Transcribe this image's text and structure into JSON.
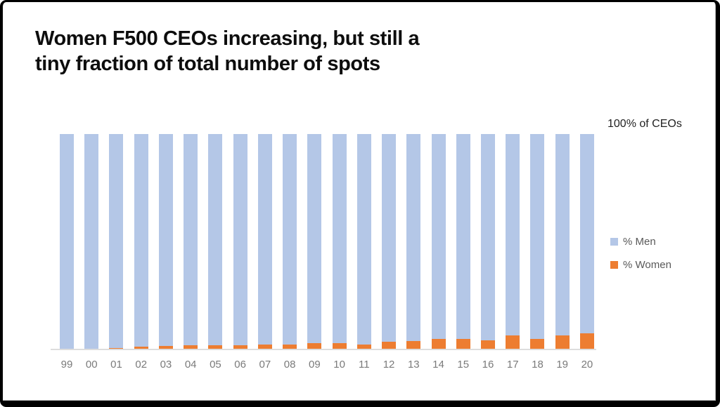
{
  "title": {
    "text": "Women F500 CEOs increasing, but still a tiny fraction of total number of spots",
    "line1": "Women F500 CEOs increasing, but still a",
    "line2": "tiny fraction of total number of spots"
  },
  "axis_note": "100% of CEOs",
  "legend": [
    {
      "label": "% Men",
      "color": "#b4c7e7"
    },
    {
      "label": "% Women",
      "color": "#ed7d31"
    }
  ],
  "colors": {
    "men_bar": "#b4c7e7",
    "women_bar": "#ed7d31",
    "axis_line": "#dddddd",
    "tick_label": "#7a7a7a",
    "frame_border": "#000000"
  },
  "chart_data": {
    "type": "bar",
    "stacked": true,
    "title": "Women F500 CEOs increasing, but still a tiny fraction of total number of spots",
    "xlabel": "",
    "ylabel": "",
    "annotation": "100% of CEOs",
    "ylim": [
      0,
      100
    ],
    "grid": false,
    "legend_position": "right",
    "categories": [
      "99",
      "00",
      "01",
      "02",
      "03",
      "04",
      "05",
      "06",
      "07",
      "08",
      "09",
      "10",
      "11",
      "12",
      "13",
      "14",
      "15",
      "16",
      "17",
      "18",
      "19",
      "20"
    ],
    "series": [
      {
        "name": "% Women",
        "color": "#ed7d31",
        "values": [
          0.4,
          0.4,
          0.8,
          1.2,
          1.6,
          1.8,
          1.8,
          2.0,
          2.4,
          2.4,
          3.0,
          3.0,
          2.4,
          3.6,
          4.0,
          4.8,
          4.8,
          4.2,
          6.4,
          4.8,
          6.6,
          7.4
        ]
      },
      {
        "name": "% Men",
        "color": "#b4c7e7",
        "values": [
          99.6,
          99.6,
          99.2,
          98.8,
          98.4,
          98.2,
          98.2,
          98.0,
          97.6,
          97.6,
          97.0,
          97.0,
          97.6,
          96.4,
          96.0,
          95.2,
          95.2,
          95.8,
          93.6,
          95.2,
          93.4,
          92.6
        ]
      }
    ]
  }
}
